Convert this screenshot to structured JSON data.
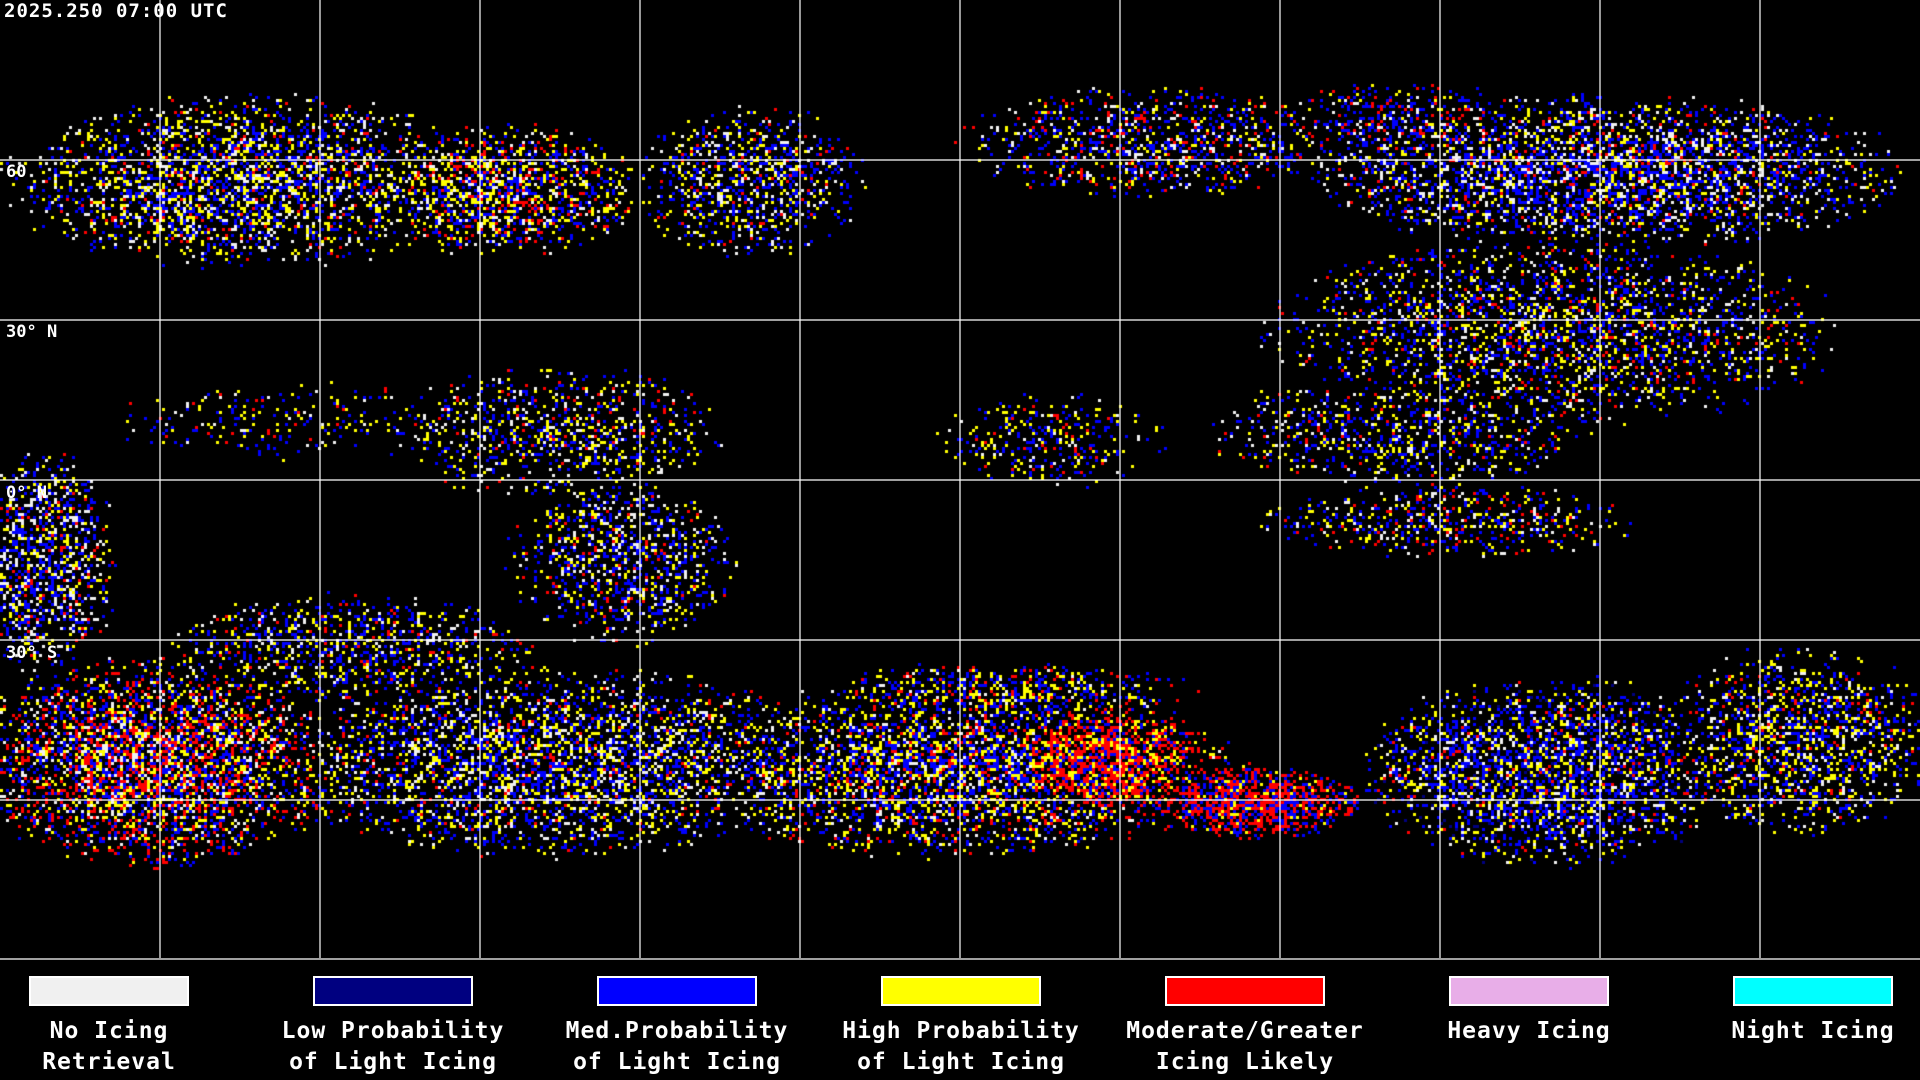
{
  "timestamp": "2025.250 07:00 UTC",
  "map": {
    "projection": "equirectangular",
    "grid_spacing_deg": 30,
    "lat_labels": [
      "60",
      "30° N",
      "0° N",
      "30° S"
    ],
    "background": "#000000",
    "gridline_color": "#ffffff",
    "coastline_color": "#ffffff"
  },
  "legend": [
    {
      "line1": "No Icing",
      "line2": "Retrieval",
      "color": "#f0f0f0"
    },
    {
      "line1": "Low Probability",
      "line2": "of Light Icing",
      "color": "#000080"
    },
    {
      "line1": "Med.Probability",
      "line2": "of Light Icing",
      "color": "#0000ff"
    },
    {
      "line1": "High Probability",
      "line2": "of Light Icing",
      "color": "#ffff00"
    },
    {
      "line1": "Moderate/Greater",
      "line2": "Icing Likely",
      "color": "#ff0000"
    },
    {
      "line1": "Heavy Icing",
      "line2": "",
      "color": "#e8aee8"
    },
    {
      "line1": "Night Icing",
      "line2": "",
      "color": "#00ffff"
    }
  ]
}
